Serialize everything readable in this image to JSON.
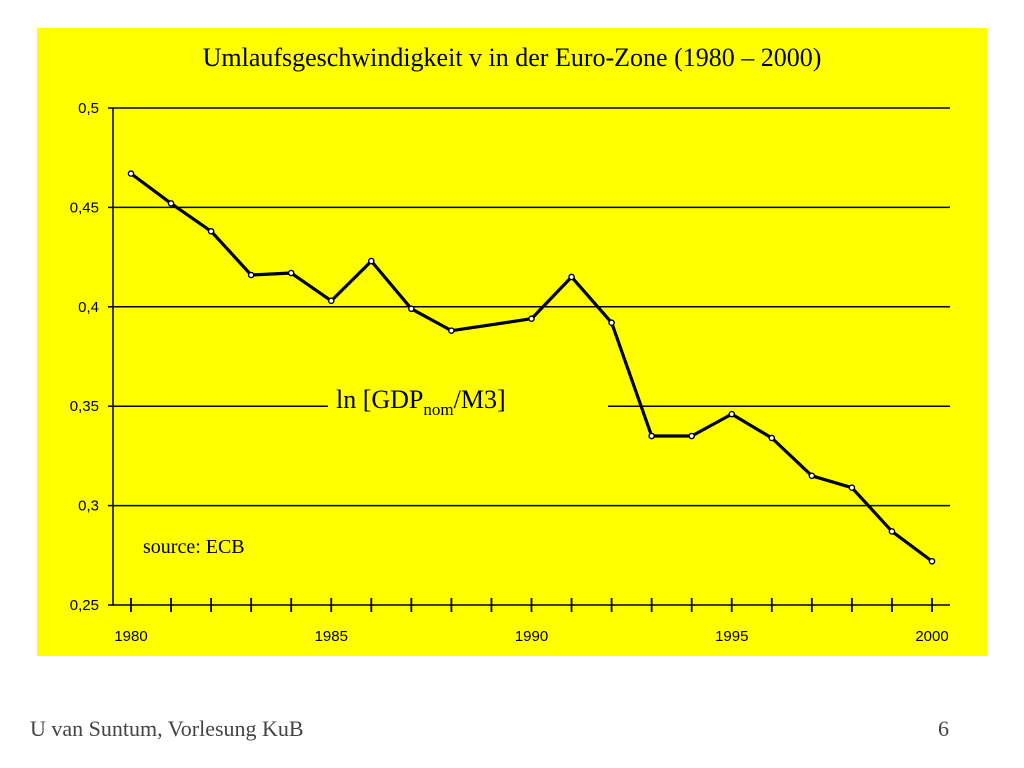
{
  "slide": {
    "title": "Umlaufsgeschwindigkeit v in der Euro-Zone (1980 – 2000)",
    "footer_left": "U van Suntum, Vorlesung KuB",
    "footer_right": "6"
  },
  "colors": {
    "background": "#ffff00",
    "line": "#000000",
    "grid": "#000000"
  },
  "chart_data": {
    "type": "line",
    "title": "Umlaufsgeschwindigkeit v in der Euro-Zone (1980 – 2000)",
    "xlabel": "",
    "ylabel": "",
    "xlim": [
      1980,
      2000
    ],
    "ylim": [
      0.25,
      0.5
    ],
    "grid": true,
    "legend": "none",
    "x": [
      1980,
      1981,
      1982,
      1983,
      1984,
      1985,
      1986,
      1987,
      1988,
      1990,
      1991,
      1992,
      1993,
      1994,
      1995,
      1996,
      1997,
      1998,
      1999,
      2000
    ],
    "series": [
      {
        "name": "",
        "values": [
          0.467,
          0.452,
          0.438,
          0.416,
          0.417,
          0.403,
          0.423,
          0.399,
          0.388,
          0.394,
          0.415,
          0.392,
          0.335,
          0.335,
          0.346,
          0.334,
          0.315,
          0.309,
          0.287,
          0.272
        ]
      }
    ],
    "y_ticks": [
      "0,5",
      "0,45",
      "0,4",
      "0,35",
      "0,3",
      "0,25"
    ],
    "y_tick_values": [
      0.5,
      0.45,
      0.4,
      0.35,
      0.3,
      0.25
    ],
    "x_tick_labels": [
      "1980",
      "1985",
      "1990",
      "1995",
      "2000"
    ],
    "x_tick_values": [
      1980,
      1985,
      1990,
      1995,
      2000
    ],
    "annotations": {
      "series_label_main": "ln [GDP",
      "series_label_sub": "nom",
      "series_label_end": "/M3]",
      "source": "source: ECB"
    }
  }
}
